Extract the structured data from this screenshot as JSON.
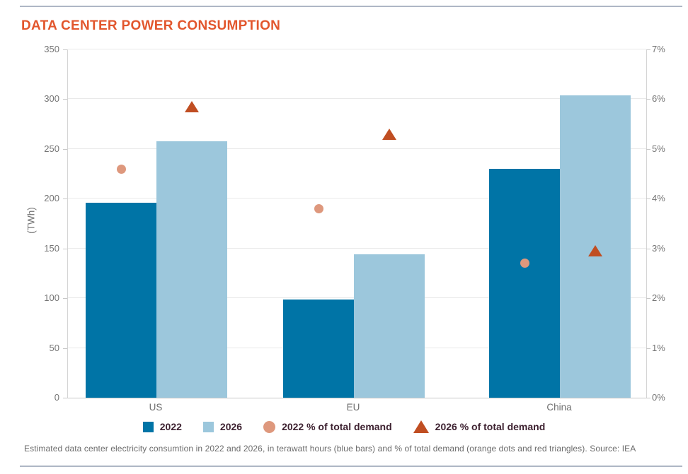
{
  "page": {
    "title": "DATA CENTER POWER CONSUMPTION",
    "caption": "Estimated data center electricity consumtion in 2022 and 2026, in terawatt hours (blue bars) and % of total demand (orange dots and red triangles). Source: IEA"
  },
  "legend": {
    "bar_2022": "2022",
    "bar_2026": "2026",
    "pct_2022": "2022 % of total demand",
    "pct_2026": "2026 % of total demand"
  },
  "colors": {
    "title_orange": "#e2562d",
    "bar_2022_blue": "#0074a6",
    "bar_2026_light_blue": "#9cc7dc",
    "dot_orange": "#de987d",
    "triangle_red": "#c04e22",
    "legend_text": "#3d2130",
    "axis_text_gray": "#757575",
    "rule_blue_gray": "#aeb7c5"
  },
  "chart_data": {
    "type": "bar",
    "title": "DATA CENTER POWER CONSUMPTION",
    "categories": [
      "US",
      "EU",
      "China"
    ],
    "left_axis": {
      "label": "(TWh)",
      "min": 0,
      "max": 350,
      "ticks": [
        "350",
        "300",
        "250",
        "200",
        "150",
        "100",
        "50",
        "0"
      ]
    },
    "right_axis": {
      "min": 0,
      "max": 7,
      "ticks": [
        "7%",
        "6%",
        "5%",
        "4%",
        "3%",
        "2%",
        "1%",
        "0%"
      ]
    },
    "grid": true,
    "legend_position": "bottom",
    "series": [
      {
        "name": "2022",
        "type": "bar",
        "axis": "left",
        "unit": "TWh",
        "color": "#0074a6",
        "values": [
          196,
          99,
          230
        ]
      },
      {
        "name": "2026",
        "type": "bar",
        "axis": "left",
        "unit": "TWh",
        "color": "#9cc7dc",
        "values": [
          258,
          144,
          304
        ]
      },
      {
        "name": "2022 % of total demand",
        "type": "scatter",
        "marker": "circle",
        "axis": "right",
        "unit": "%",
        "color": "#de987d",
        "values": [
          4.6,
          3.8,
          2.7
        ]
      },
      {
        "name": "2026 % of total demand",
        "type": "scatter",
        "marker": "triangle",
        "axis": "right",
        "unit": "%",
        "color": "#c04e22",
        "values": [
          5.85,
          5.3,
          2.95
        ]
      }
    ]
  }
}
